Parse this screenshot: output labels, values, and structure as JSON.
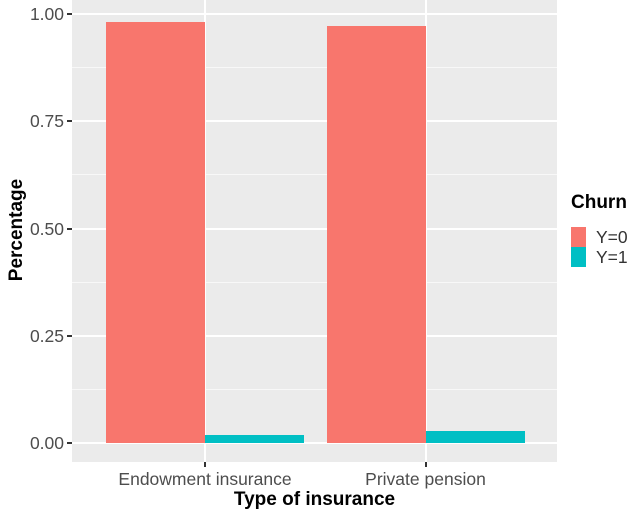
{
  "chart_data": {
    "type": "bar",
    "title": "",
    "xlabel": "Type of insurance",
    "ylabel": "Percentage",
    "categories": [
      "Endowment insurance",
      "Private pension"
    ],
    "series": [
      {
        "name": "Y=0",
        "color": "#F8766D",
        "values": [
          0.982,
          0.972
        ]
      },
      {
        "name": "Y=1",
        "color": "#00BFC4",
        "values": [
          0.018,
          0.028
        ]
      }
    ],
    "legend_title": "Churn",
    "legend_position": "right",
    "ylim": [
      0,
      1
    ],
    "ytick_labels": [
      "0.00",
      "0.25",
      "0.50",
      "0.75",
      "1.00"
    ],
    "ytick_values": [
      0,
      0.25,
      0.5,
      0.75,
      1.0
    ],
    "yminor_values": [
      0.125,
      0.375,
      0.625,
      0.875
    ],
    "grid": "on",
    "panel_background": "#EBEBEB",
    "gridline_color": "#FFFFFF",
    "bar_layout": "dodged"
  }
}
